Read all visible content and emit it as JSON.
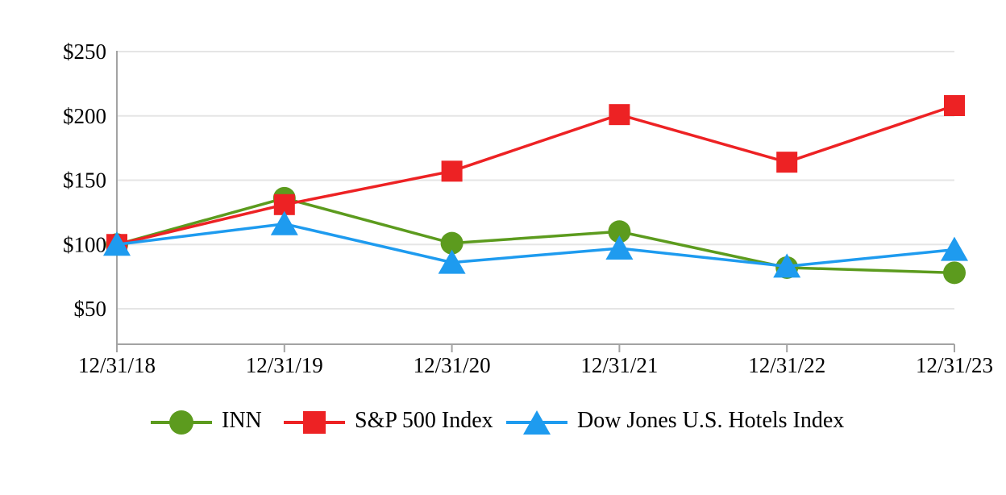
{
  "chart_data": {
    "type": "line",
    "title": "",
    "xlabel": "",
    "ylabel": "",
    "categories": [
      "12/31/18",
      "12/31/19",
      "12/31/20",
      "12/31/21",
      "12/31/22",
      "12/31/23"
    ],
    "series": [
      {
        "name": "INN",
        "marker": "circle",
        "color": "#5C9B1E",
        "values": [
          100,
          136,
          101,
          110,
          82,
          78
        ]
      },
      {
        "name": "S&P 500 Index",
        "marker": "square",
        "color": "#ED2224",
        "values": [
          100,
          131,
          157,
          201,
          164,
          208
        ]
      },
      {
        "name": "Dow Jones U.S. Hotels Index",
        "marker": "triangle",
        "color": "#1E9BEF",
        "values": [
          100,
          116,
          86,
          97,
          83,
          96
        ]
      }
    ],
    "y_ticks": [
      {
        "value": 50,
        "label": "$50"
      },
      {
        "value": 100,
        "label": "$100"
      },
      {
        "value": 150,
        "label": "$150"
      },
      {
        "value": 200,
        "label": "$200"
      },
      {
        "value": 250,
        "label": "$250"
      }
    ],
    "ylim": [
      22,
      250
    ],
    "grid": "horizontal",
    "legend_position": "bottom",
    "colors": {
      "gridline": "#E5E5E5",
      "axis": "#A3A3A3",
      "text": "#000000",
      "background": "#FFFFFF"
    }
  }
}
